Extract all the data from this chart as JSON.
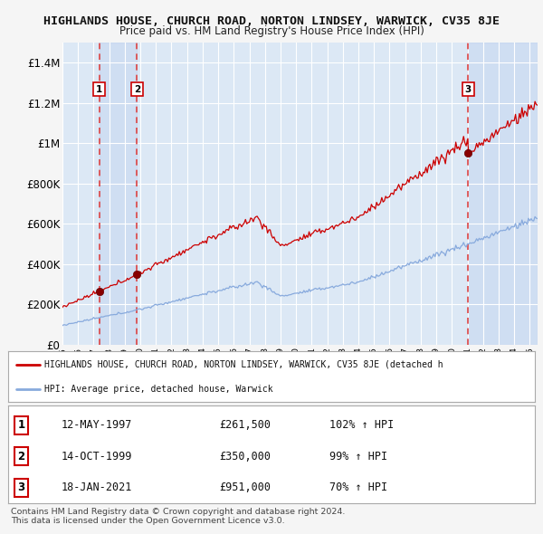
{
  "title": "HIGHLANDS HOUSE, CHURCH ROAD, NORTON LINDSEY, WARWICK, CV35 8JE",
  "subtitle": "Price paid vs. HM Land Registry's House Price Index (HPI)",
  "title_fontsize": 9.5,
  "subtitle_fontsize": 8.5,
  "ylabel_fontsize": 8.5,
  "xlabel_fontsize": 7.5,
  "ylim": [
    0,
    1500000
  ],
  "yticks": [
    0,
    200000,
    400000,
    600000,
    800000,
    1000000,
    1200000,
    1400000
  ],
  "ytick_labels": [
    "£0",
    "£200K",
    "£400K",
    "£600K",
    "£800K",
    "£1M",
    "£1.2M",
    "£1.4M"
  ],
  "xlim_start": 1995.0,
  "xlim_end": 2025.5,
  "fig_bg_color": "#f5f5f5",
  "plot_bg_color": "#dce8f5",
  "grid_color": "#ffffff",
  "red_line_color": "#cc0000",
  "blue_line_color": "#88aadd",
  "sale_marker_color": "#880000",
  "dashed_line_color": "#dd4444",
  "shade_color": "#c8d8ee",
  "sales": [
    {
      "num": 1,
      "year": 1997.36,
      "price": 261500,
      "label": "1",
      "date": "12-MAY-1997",
      "pct": "102%",
      "dir": "↑"
    },
    {
      "num": 2,
      "year": 1999.79,
      "price": 350000,
      "label": "2",
      "date": "14-OCT-1999",
      "pct": "99%",
      "dir": "↑"
    },
    {
      "num": 3,
      "year": 2021.05,
      "price": 951000,
      "label": "3",
      "date": "18-JAN-2021",
      "pct": "70%",
      "dir": "↑"
    }
  ],
  "legend_line1": "HIGHLANDS HOUSE, CHURCH ROAD, NORTON LINDSEY, WARWICK, CV35 8JE (detached h",
  "legend_line2": "HPI: Average price, detached house, Warwick",
  "footer1": "Contains HM Land Registry data © Crown copyright and database right 2024.",
  "footer2": "This data is licensed under the Open Government Licence v3.0.",
  "table_rows": [
    {
      "num": "1",
      "date": "12-MAY-1997",
      "price": "£261,500",
      "pct": "102% ↑ HPI"
    },
    {
      "num": "2",
      "date": "14-OCT-1999",
      "price": "£350,000",
      "pct": "99% ↑ HPI"
    },
    {
      "num": "3",
      "date": "18-JAN-2021",
      "price": "£951,000",
      "pct": "70% ↑ HPI"
    }
  ]
}
